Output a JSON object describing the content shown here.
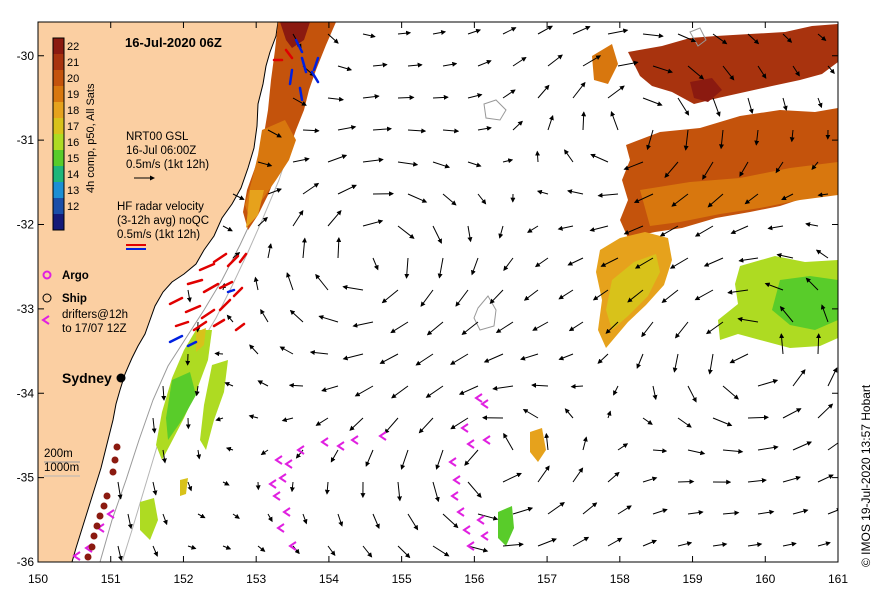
{
  "map": {
    "title": "16-Jul-2020 06Z",
    "credit": "© IMOS 19-Jul-2020 13:57 Hobart",
    "lon_ticks": [
      "150",
      "151",
      "152",
      "153",
      "154",
      "155",
      "156",
      "157",
      "158",
      "159",
      "160",
      "161"
    ],
    "lat_ticks": [
      "-30",
      "-31",
      "-32",
      "-33",
      "-34",
      "-35",
      "-36"
    ],
    "lon_range": [
      150,
      161
    ],
    "lat_range": [
      -36,
      -29.6
    ]
  },
  "colorbar": {
    "label": "4h comp, p50, All Sats",
    "ticks": [
      "22",
      "21",
      "20",
      "19",
      "18",
      "17",
      "16",
      "15",
      "14",
      "13",
      "12"
    ],
    "colors": [
      "#8b1a10",
      "#a8330e",
      "#c4530c",
      "#d8770e",
      "#e6a21c",
      "#d8c21a",
      "#aedb22",
      "#59cc2a",
      "#1fb67a",
      "#1c8fd4",
      "#1a4ea8",
      "#141a78"
    ]
  },
  "legend": {
    "gsl_title": "NRT00 GSL",
    "gsl_time": "16-Jul 06:00Z",
    "gsl_scale": "0.5m/s (1kt 12h)",
    "hf_title": "HF radar velocity",
    "hf_avg": "(3-12h avg) noQC",
    "hf_scale": "0.5m/s (1kt 12h)",
    "argo": "Argo",
    "ship": "Ship",
    "drifters_1": "drifters@12h",
    "drifters_2": "to 17/07 12Z",
    "depth_200": "200m",
    "depth_1000": "1000m"
  },
  "places": {
    "sydney": "Sydney"
  },
  "colors": {
    "land": "#fbcfa2",
    "arrow": "#000000",
    "hf_red": "#e00000",
    "hf_blue": "#0020e0",
    "drifter": "#e020e0",
    "argo": "#e020e0",
    "coast_dots": "#8b1a10"
  }
}
